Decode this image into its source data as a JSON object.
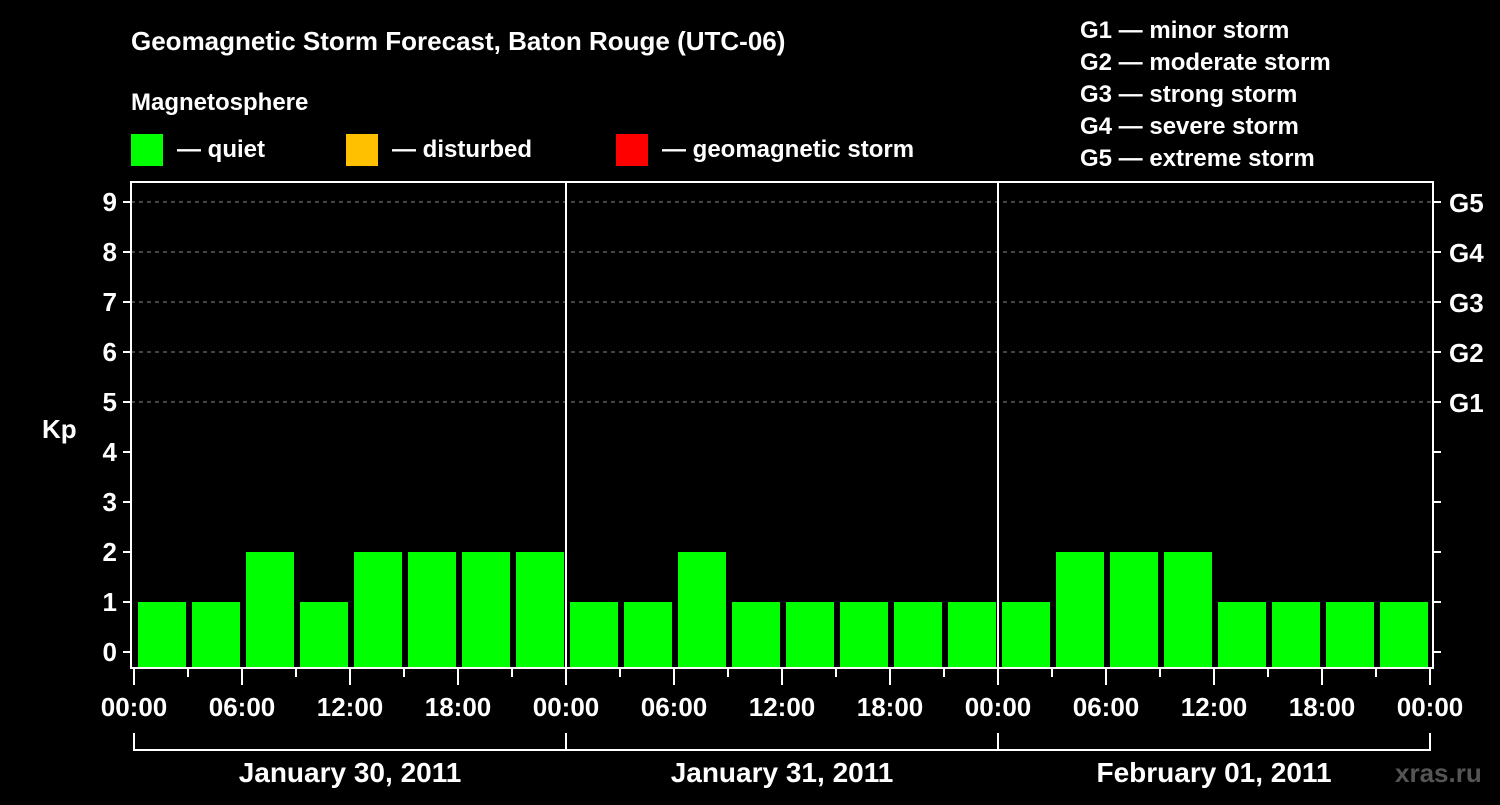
{
  "chart_data": {
    "type": "bar",
    "title": "Geomagnetic Storm Forecast, Baton Rouge (UTC-06)",
    "ylabel": "Kp",
    "ylim": [
      0,
      9
    ],
    "yticks": [
      "0",
      "1",
      "2",
      "3",
      "4",
      "5",
      "6",
      "7",
      "8",
      "9"
    ],
    "right_ticks": [
      {
        "kp": 5,
        "label": "G1"
      },
      {
        "kp": 6,
        "label": "G2"
      },
      {
        "kp": 7,
        "label": "G3"
      },
      {
        "kp": 8,
        "label": "G4"
      },
      {
        "kp": 9,
        "label": "G5"
      }
    ],
    "grid": "dashed at Kp 5-9",
    "xtick_labels": [
      "00:00",
      "06:00",
      "12:00",
      "18:00",
      "00:00",
      "06:00",
      "12:00",
      "18:00",
      "00:00",
      "06:00",
      "12:00",
      "18:00",
      "00:00"
    ],
    "days": [
      {
        "label": "January 30, 2011",
        "values": [
          1,
          1,
          2,
          1,
          2,
          2,
          2,
          2
        ]
      },
      {
        "label": "January 31, 2011",
        "values": [
          1,
          1,
          2,
          1,
          1,
          1,
          1,
          1
        ]
      },
      {
        "label": "February 01, 2011",
        "values": [
          1,
          2,
          2,
          2,
          1,
          1,
          1,
          1
        ]
      }
    ],
    "bar_interval_hours": 3
  },
  "legend": {
    "title": "Magnetosphere",
    "items": [
      {
        "label": "— quiet",
        "color": "#00ff00"
      },
      {
        "label": "— disturbed",
        "color": "#ffc000"
      },
      {
        "label": "— geomagnetic storm",
        "color": "#ff0000"
      }
    ]
  },
  "scale": [
    "G1 — minor storm",
    "G2 — moderate storm",
    "G3 — strong storm",
    "G4 — severe storm",
    "G5 — extreme storm"
  ],
  "watermark": "xras.ru"
}
